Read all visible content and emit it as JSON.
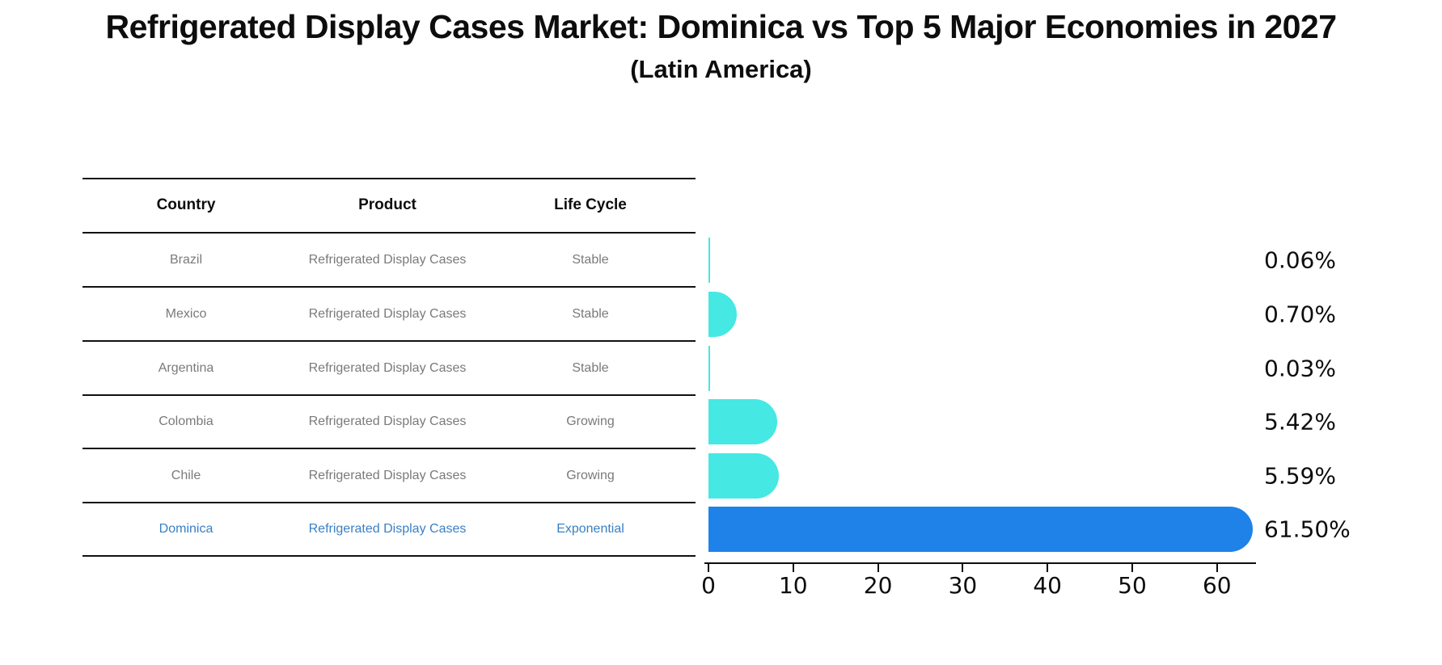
{
  "title": "Refrigerated Display Cases Market: Dominica vs Top 5 Major Economies in 2027",
  "subtitle": "(Latin America)",
  "table": {
    "headers": [
      "Country",
      "Product",
      "Life Cycle"
    ],
    "rows": [
      {
        "country": "Brazil",
        "product": "Refrigerated Display Cases",
        "life_cycle": "Stable",
        "highlighted": false
      },
      {
        "country": "Mexico",
        "product": "Refrigerated Display Cases",
        "life_cycle": "Stable",
        "highlighted": false
      },
      {
        "country": "Argentina",
        "product": "Refrigerated Display Cases",
        "life_cycle": "Stable",
        "highlighted": false
      },
      {
        "country": "Colombia",
        "product": "Refrigerated Display Cases",
        "life_cycle": "Growing",
        "highlighted": false
      },
      {
        "country": "Chile",
        "product": "Refrigerated Display Cases",
        "life_cycle": "Growing",
        "highlighted": false
      },
      {
        "country": "Dominica",
        "product": "Refrigerated Display Cases",
        "life_cycle": "Exponential",
        "highlighted": true
      }
    ]
  },
  "chart_data": {
    "type": "bar",
    "orientation": "horizontal",
    "title": "Refrigerated Display Cases Market: Dominica vs Top 5 Major Economies in 2027",
    "subtitle": "(Latin America)",
    "categories": [
      "Brazil",
      "Mexico",
      "Argentina",
      "Colombia",
      "Chile",
      "Dominica"
    ],
    "values": [
      0.06,
      0.7,
      0.03,
      5.42,
      5.59,
      61.5
    ],
    "value_labels": [
      "0.06%",
      "0.70%",
      "0.03%",
      "5.42%",
      "5.59%",
      "61.50%"
    ],
    "x_ticks": [
      0,
      10,
      20,
      30,
      40,
      50,
      60
    ],
    "xlim": [
      0,
      64.5
    ],
    "xlabel": "",
    "ylabel": "",
    "grid": false,
    "legend": null,
    "highlight_index": 5,
    "highlight_style": "dotted-border",
    "colors": {
      "default_bar": "#45E8E3",
      "highlight_bar": "#1F82E8",
      "highlight_border": "#1F82E8",
      "row_text": "#7a7a7a",
      "highlight_text": "#3a80c4",
      "axis": "#0d0d0d"
    }
  }
}
